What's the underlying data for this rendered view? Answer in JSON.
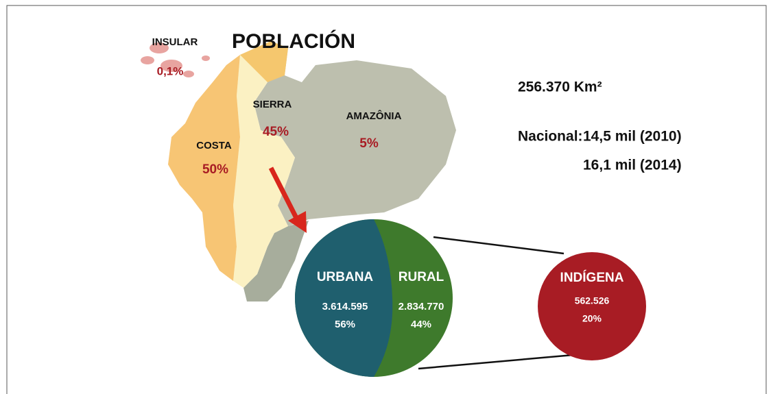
{
  "title": "POBLACIÓN",
  "regions": [
    {
      "name": "INSULAR",
      "share": "0,1%"
    },
    {
      "name": "SIERRA",
      "share": "45%"
    },
    {
      "name": "AMAZÔNIA",
      "share": "5%"
    },
    {
      "name": "COSTA",
      "share": "50%"
    }
  ],
  "area": "256.370 Km²",
  "national": {
    "label": "Nacional:",
    "lines": [
      "14,5 mil (2010)",
      "16,1 mil (2014)"
    ]
  },
  "pie": [
    {
      "name": "URBANA",
      "count": "3.614.595",
      "share": "56%"
    },
    {
      "name": "RURAL",
      "count": "2.834.770",
      "share": "44%"
    }
  ],
  "indigenous": {
    "name": "INDÍGENA",
    "count": "562.526",
    "share": "20%"
  }
}
